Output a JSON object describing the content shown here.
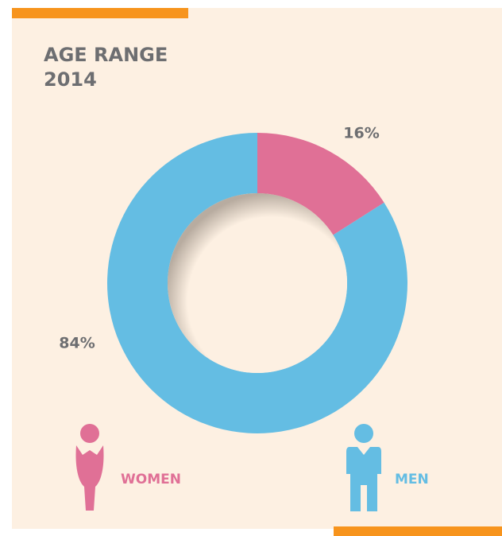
{
  "chart_data": {
    "type": "pie",
    "title": "AGE RANGE",
    "subtitle": "2014",
    "categories": [
      "WOMEN",
      "MEN"
    ],
    "values": [
      16,
      84
    ],
    "value_labels": [
      "16%",
      "84%"
    ],
    "colors": [
      "#e07096",
      "#64bde3"
    ],
    "donut": true
  }
}
